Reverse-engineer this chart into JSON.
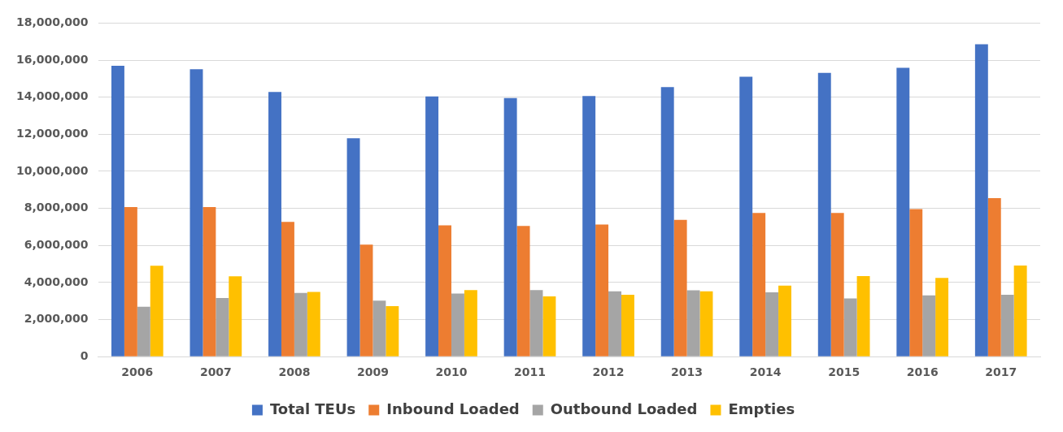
{
  "chart_data": {
    "type": "bar",
    "categories": [
      "2006",
      "2007",
      "2008",
      "2009",
      "2010",
      "2011",
      "2012",
      "2013",
      "2014",
      "2015",
      "2016",
      "2017"
    ],
    "series": [
      {
        "name": "Total TEUs",
        "color": "#4472c4",
        "values": [
          15700000,
          15510000,
          14280000,
          11790000,
          14040000,
          13950000,
          14060000,
          14540000,
          15100000,
          15310000,
          15590000,
          16860000
        ]
      },
      {
        "name": "Inbound Loaded",
        "color": "#ed7d31",
        "values": [
          8070000,
          8070000,
          7270000,
          6050000,
          7090000,
          7050000,
          7130000,
          7380000,
          7750000,
          7750000,
          7960000,
          8550000
        ]
      },
      {
        "name": "Outbound Loaded",
        "color": "#a5a5a5",
        "values": [
          2690000,
          3160000,
          3440000,
          3020000,
          3400000,
          3590000,
          3530000,
          3580000,
          3470000,
          3140000,
          3310000,
          3340000
        ]
      },
      {
        "name": "Empties",
        "color": "#ffc000",
        "values": [
          4910000,
          4340000,
          3490000,
          2730000,
          3590000,
          3250000,
          3340000,
          3530000,
          3830000,
          4350000,
          4250000,
          4920000
        ]
      }
    ],
    "ylim": [
      0,
      18000000
    ],
    "yticks": [
      0,
      {
        "value": 2000000,
        "label": "2,000,000"
      },
      {
        "value": 4000000,
        "label": "4,000,000"
      },
      {
        "value": 6000000,
        "label": "6,000,000"
      },
      {
        "value": 8000000,
        "label": "8,000,000"
      },
      {
        "value": 10000000,
        "label": "10,000,000"
      },
      {
        "value": 12000000,
        "label": "12,000,000"
      },
      {
        "value": 14000000,
        "label": "14,000,000"
      },
      {
        "value": 16000000,
        "label": "16,000,000"
      },
      {
        "value": 18000000,
        "label": "18,000,000"
      }
    ],
    "grid": "y",
    "legend": "bottom"
  }
}
